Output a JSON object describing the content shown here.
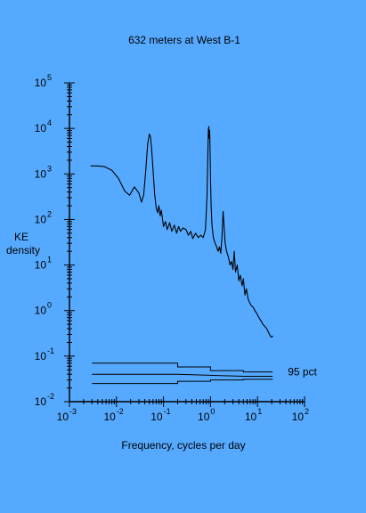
{
  "chart_data": {
    "type": "line",
    "title": "632 meters at West B-1",
    "xlabel": "Frequency, cycles per day",
    "ylabel_lines": [
      "KE",
      "density"
    ],
    "x_scale": "log",
    "y_scale": "log",
    "xlim": [
      0.001,
      100
    ],
    "ylim": [
      0.01,
      100000
    ],
    "x_ticks": [
      {
        "base": "10",
        "exp": "-3",
        "value": 0.001
      },
      {
        "base": "10",
        "exp": "-2",
        "value": 0.01
      },
      {
        "base": "10",
        "exp": "-1",
        "value": 0.1
      },
      {
        "base": "10",
        "exp": "0",
        "value": 1
      },
      {
        "base": "10",
        "exp": "1",
        "value": 10
      },
      {
        "base": "10",
        "exp": "2",
        "value": 100
      }
    ],
    "y_ticks": [
      {
        "base": "10",
        "exp": "5",
        "value": 100000
      },
      {
        "base": "10",
        "exp": "4",
        "value": 10000
      },
      {
        "base": "10",
        "exp": "3",
        "value": 1000
      },
      {
        "base": "10",
        "exp": "2",
        "value": 100
      },
      {
        "base": "10",
        "exp": "1",
        "value": 10
      },
      {
        "base": "10",
        "exp": "0",
        "value": 1
      },
      {
        "base": "10",
        "exp": "-1",
        "value": 0.1
      },
      {
        "base": "10",
        "exp": "-2",
        "value": 0.01
      }
    ],
    "series": [
      {
        "name": "",
        "color": "#000000",
        "points": [
          [
            0.0028,
            1500
          ],
          [
            0.004,
            1500
          ],
          [
            0.0055,
            1450
          ],
          [
            0.008,
            1200
          ],
          [
            0.011,
            800
          ],
          [
            0.015,
            420
          ],
          [
            0.019,
            340
          ],
          [
            0.024,
            520
          ],
          [
            0.03,
            380
          ],
          [
            0.034,
            240
          ],
          [
            0.038,
            350
          ],
          [
            0.042,
            1200
          ],
          [
            0.046,
            4500
          ],
          [
            0.05,
            7500
          ],
          [
            0.053,
            6500
          ],
          [
            0.056,
            3500
          ],
          [
            0.06,
            1200
          ],
          [
            0.065,
            350
          ],
          [
            0.07,
            180
          ],
          [
            0.075,
            140
          ],
          [
            0.08,
            200
          ],
          [
            0.085,
            120
          ],
          [
            0.09,
            160
          ],
          [
            0.1,
            70
          ],
          [
            0.11,
            90
          ],
          [
            0.12,
            60
          ],
          [
            0.135,
            85
          ],
          [
            0.15,
            55
          ],
          [
            0.17,
            75
          ],
          [
            0.19,
            50
          ],
          [
            0.21,
            70
          ],
          [
            0.23,
            55
          ],
          [
            0.26,
            65
          ],
          [
            0.3,
            60
          ],
          [
            0.34,
            45
          ],
          [
            0.38,
            55
          ],
          [
            0.42,
            38
          ],
          [
            0.48,
            50
          ],
          [
            0.55,
            40
          ],
          [
            0.62,
            45
          ],
          [
            0.7,
            40
          ],
          [
            0.78,
            60
          ],
          [
            0.84,
            300
          ],
          [
            0.88,
            3000
          ],
          [
            0.9,
            9000
          ],
          [
            0.92,
            11000
          ],
          [
            0.94,
            6000
          ],
          [
            0.96,
            9000
          ],
          [
            0.98,
            3000
          ],
          [
            1.0,
            800
          ],
          [
            1.03,
            200
          ],
          [
            1.08,
            70
          ],
          [
            1.15,
            40
          ],
          [
            1.25,
            30
          ],
          [
            1.35,
            25
          ],
          [
            1.45,
            20
          ],
          [
            1.55,
            25
          ],
          [
            1.65,
            18
          ],
          [
            1.75,
            40
          ],
          [
            1.85,
            150
          ],
          [
            1.93,
            80
          ],
          [
            2.05,
            30
          ],
          [
            2.2,
            20
          ],
          [
            2.4,
            15
          ],
          [
            2.6,
            10
          ],
          [
            2.8,
            12
          ],
          [
            3.0,
            8
          ],
          [
            3.2,
            20
          ],
          [
            3.4,
            7
          ],
          [
            3.7,
            10
          ],
          [
            4.0,
            4.5
          ],
          [
            4.3,
            6
          ],
          [
            4.7,
            3.5
          ],
          [
            5.0,
            5
          ],
          [
            5.4,
            2.2
          ],
          [
            5.8,
            3
          ],
          [
            6.3,
            1.8
          ],
          [
            6.8,
            1.5
          ],
          [
            7.3,
            1.3
          ],
          [
            8.0,
            1.2
          ],
          [
            8.8,
            1.0
          ],
          [
            9.7,
            0.85
          ],
          [
            10.7,
            0.7
          ],
          [
            11.8,
            0.6
          ],
          [
            13,
            0.5
          ],
          [
            14.3,
            0.45
          ],
          [
            15.7,
            0.4
          ],
          [
            17.2,
            0.33
          ],
          [
            18.5,
            0.28
          ],
          [
            20,
            0.26
          ],
          [
            21,
            0.28
          ]
        ]
      }
    ],
    "confidence_interval": {
      "label": "95 pct",
      "lines": [
        {
          "segments": [
            [
              0.003,
              0.07
            ],
            [
              0.2,
              0.07
            ],
            [
              0.2,
              0.058
            ],
            [
              1,
              0.058
            ],
            [
              1,
              0.048
            ],
            [
              5,
              0.048
            ],
            [
              5,
              0.045
            ],
            [
              21,
              0.045
            ]
          ]
        },
        {
          "segments": [
            [
              0.003,
              0.04
            ],
            [
              0.2,
              0.04
            ],
            [
              1,
              0.038
            ],
            [
              5,
              0.036
            ],
            [
              21,
              0.036
            ]
          ]
        },
        {
          "segments": [
            [
              0.003,
              0.025
            ],
            [
              0.2,
              0.025
            ],
            [
              0.2,
              0.028
            ],
            [
              1,
              0.028
            ],
            [
              1,
              0.03
            ],
            [
              5,
              0.03
            ],
            [
              5,
              0.031
            ],
            [
              21,
              0.031
            ]
          ]
        }
      ]
    }
  }
}
